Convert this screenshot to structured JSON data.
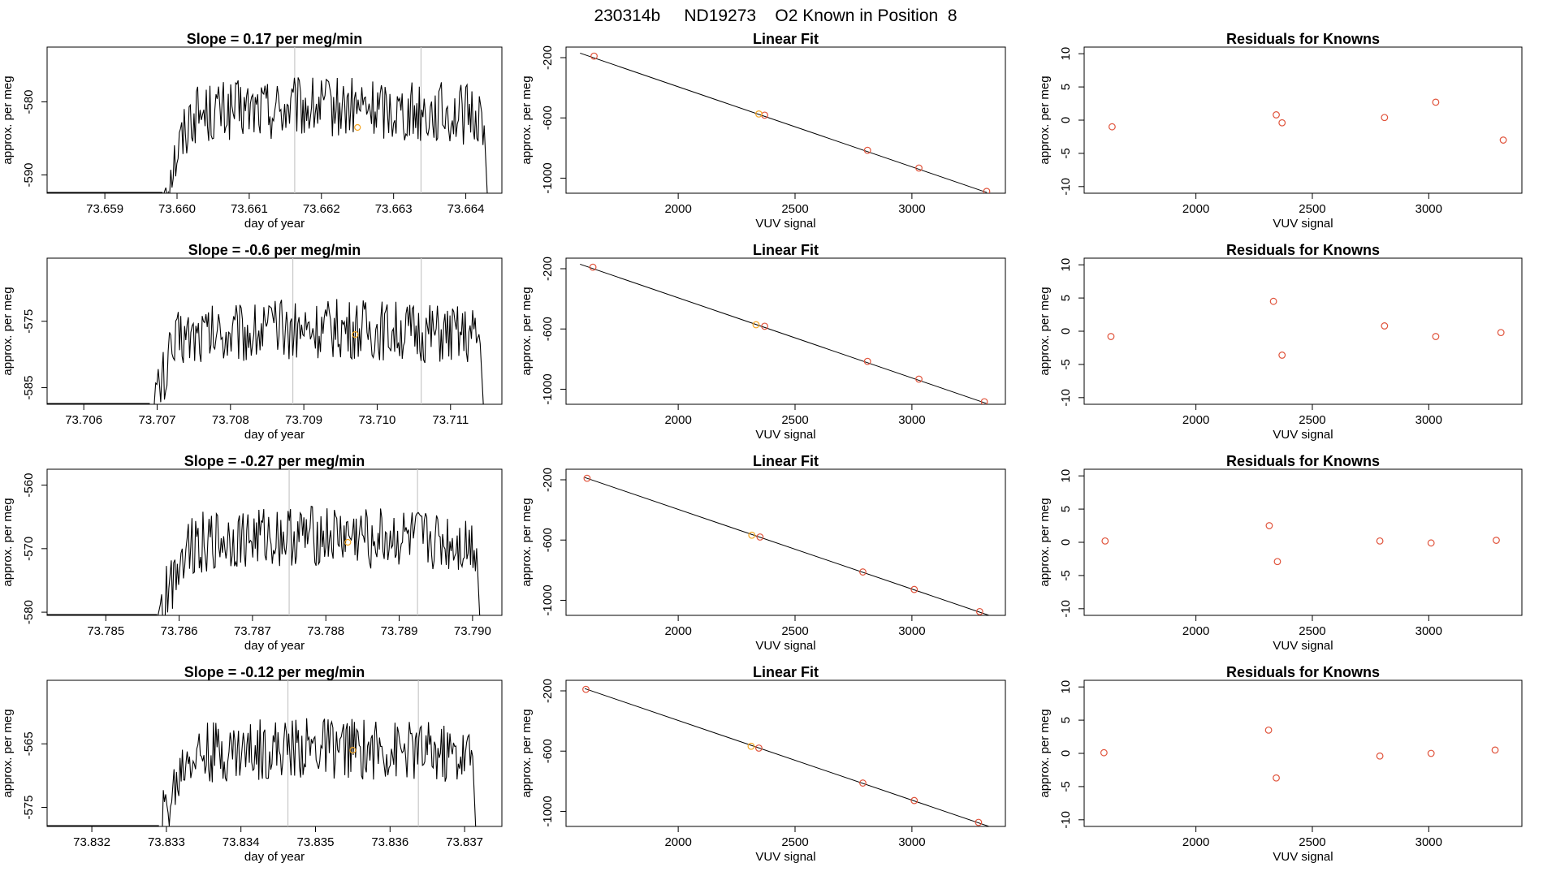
{
  "figure": {
    "main_title": "230314b     ND19273    O2 Known in Position  8"
  },
  "colors": {
    "line": "#000000",
    "marker_standard": "#e0533b",
    "marker_known": "#f5a623",
    "divider": "#c8c8c8"
  },
  "chart_data": [
    {
      "type": "line",
      "panel": "time-1",
      "title": "Slope =  0.17  per meg/min",
      "xlabel": "day of year",
      "ylabel": "approx. per meg",
      "xlim": [
        73.6582,
        73.6645
      ],
      "ylim": [
        -592.5,
        -572.5
      ],
      "xticks": [
        "73.659",
        "73.660",
        "73.661",
        "73.662",
        "73.663",
        "73.664"
      ],
      "yticks": [
        -590,
        -580
      ],
      "x_start": 73.6598,
      "x_end": 73.6643,
      "level": -582.0,
      "dividers": [
        73.66163,
        73.66338
      ],
      "known_point": [
        73.6625,
        -583.5
      ]
    },
    {
      "type": "scatter",
      "panel": "fit-1",
      "title": "Linear Fit",
      "xlabel": "VUV signal",
      "ylabel": "approx. per meg",
      "xlim": [
        1520,
        3400
      ],
      "ylim": [
        -1100,
        -130
      ],
      "xticks": [
        2000,
        2500,
        3000
      ],
      "yticks": [
        -200,
        -600,
        -1000
      ],
      "line": [
        [
          1580,
          -170
        ],
        [
          3320,
          -1095
        ]
      ],
      "standards": [
        [
          1640,
          -190
        ],
        [
          2370,
          -582
        ],
        [
          2810,
          -815
        ],
        [
          3030,
          -933
        ],
        [
          3320,
          -1088
        ]
      ],
      "known": [
        [
          2345,
          -574
        ]
      ]
    },
    {
      "type": "scatter",
      "panel": "resid-1",
      "title": "Residuals for Knowns",
      "xlabel": "VUV signal",
      "ylabel": "approx. per meg",
      "xlim": [
        1520,
        3400
      ],
      "ylim": [
        -11,
        11
      ],
      "xticks": [
        2000,
        2500,
        3000
      ],
      "yticks": [
        -10,
        -5,
        0,
        5,
        10
      ],
      "points": [
        [
          1640,
          -1.0
        ],
        [
          2345,
          0.8
        ],
        [
          2370,
          -0.4
        ],
        [
          2810,
          0.4
        ],
        [
          3030,
          2.7
        ],
        [
          3320,
          -3.0
        ]
      ]
    },
    {
      "type": "line",
      "panel": "time-2",
      "title": "Slope =  -0.6  per meg/min",
      "xlabel": "day of year",
      "ylabel": "approx. per meg",
      "xlim": [
        73.7055,
        73.7117
      ],
      "ylim": [
        -587.5,
        -565.5
      ],
      "xticks": [
        "73.706",
        "73.707",
        "73.708",
        "73.709",
        "73.710",
        "73.711"
      ],
      "yticks": [
        -585,
        -575
      ],
      "x_start": 73.7069,
      "x_end": 73.71145,
      "level": -577.5,
      "dividers": [
        73.70885,
        73.7106
      ],
      "known_point": [
        73.7097,
        -577.0
      ]
    },
    {
      "type": "scatter",
      "panel": "fit-2",
      "title": "Linear Fit",
      "xlabel": "VUV signal",
      "ylabel": "approx. per meg",
      "xlim": [
        1520,
        3400
      ],
      "ylim": [
        -1100,
        -130
      ],
      "xticks": [
        2000,
        2500,
        3000
      ],
      "yticks": [
        -200,
        -600,
        -1000
      ],
      "line": [
        [
          1580,
          -170
        ],
        [
          3320,
          -1095
        ]
      ],
      "standards": [
        [
          1635,
          -190
        ],
        [
          2370,
          -582
        ],
        [
          2810,
          -815
        ],
        [
          3030,
          -933
        ],
        [
          3310,
          -1083
        ]
      ],
      "known": [
        [
          2333,
          -572
        ]
      ]
    },
    {
      "type": "scatter",
      "panel": "resid-2",
      "title": "Residuals for Knowns",
      "xlabel": "VUV signal",
      "ylabel": "approx. per meg",
      "xlim": [
        1520,
        3400
      ],
      "ylim": [
        -11,
        11
      ],
      "xticks": [
        2000,
        2500,
        3000
      ],
      "yticks": [
        -10,
        -5,
        0,
        5,
        10
      ],
      "points": [
        [
          1635,
          -0.8
        ],
        [
          2333,
          4.5
        ],
        [
          2370,
          -3.6
        ],
        [
          2810,
          0.8
        ],
        [
          3030,
          -0.8
        ],
        [
          3310,
          -0.2
        ]
      ]
    },
    {
      "type": "line",
      "panel": "time-3",
      "title": "Slope =  -0.27  per meg/min",
      "xlabel": "day of year",
      "ylabel": "approx. per meg",
      "xlim": [
        73.7842,
        73.7904
      ],
      "ylim": [
        -580.5,
        -557.5
      ],
      "xticks": [
        "73.785",
        "73.786",
        "73.787",
        "73.788",
        "73.789",
        "73.790"
      ],
      "yticks": [
        -580,
        -570,
        -560
      ],
      "x_start": 73.7857,
      "x_end": 73.7901,
      "level": -569.5,
      "dividers": [
        73.7875,
        73.78925
      ],
      "known_point": [
        73.7883,
        -569.0
      ]
    },
    {
      "type": "scatter",
      "panel": "fit-3",
      "title": "Linear Fit",
      "xlabel": "VUV signal",
      "ylabel": "approx. per meg",
      "xlim": [
        1520,
        3400
      ],
      "ylim": [
        -1100,
        -130
      ],
      "xticks": [
        2000,
        2500,
        3000
      ],
      "yticks": [
        -200,
        -600,
        -1000
      ],
      "line": [
        [
          1600,
          -185
        ],
        [
          3330,
          -1100
        ]
      ],
      "standards": [
        [
          1610,
          -190
        ],
        [
          2350,
          -580
        ],
        [
          2790,
          -812
        ],
        [
          3010,
          -928
        ],
        [
          3290,
          -1075
        ]
      ],
      "known": [
        [
          2315,
          -568
        ]
      ]
    },
    {
      "type": "scatter",
      "panel": "resid-3",
      "title": "Residuals for Knowns",
      "xlabel": "VUV signal",
      "ylabel": "approx. per meg",
      "xlim": [
        1520,
        3400
      ],
      "ylim": [
        -11,
        11
      ],
      "xticks": [
        2000,
        2500,
        3000
      ],
      "yticks": [
        -10,
        -5,
        0,
        5,
        10
      ],
      "points": [
        [
          1610,
          0.2
        ],
        [
          2315,
          2.5
        ],
        [
          2350,
          -2.9
        ],
        [
          2790,
          0.2
        ],
        [
          3010,
          -0.1
        ],
        [
          3290,
          0.3
        ]
      ]
    },
    {
      "type": "line",
      "panel": "time-4",
      "title": "Slope =  -0.12  per meg/min",
      "xlabel": "day of year",
      "ylabel": "approx. per meg",
      "xlim": [
        73.8314,
        73.8375
      ],
      "ylim": [
        -578.0,
        -555.0
      ],
      "xticks": [
        "73.832",
        "73.833",
        "73.834",
        "73.835",
        "73.836",
        "73.837"
      ],
      "yticks": [
        -575,
        -565
      ],
      "x_start": 73.8329,
      "x_end": 73.83715,
      "level": -567.0,
      "dividers": [
        73.83463,
        73.83638
      ],
      "known_point": [
        73.8355,
        -566.0
      ]
    },
    {
      "type": "scatter",
      "panel": "fit-4",
      "title": "Linear Fit",
      "xlabel": "VUV signal",
      "ylabel": "approx. per meg",
      "xlim": [
        1520,
        3400
      ],
      "ylim": [
        -1100,
        -130
      ],
      "xticks": [
        2000,
        2500,
        3000
      ],
      "yticks": [
        -200,
        -600,
        -1000
      ],
      "line": [
        [
          1600,
          -185
        ],
        [
          3330,
          -1100
        ]
      ],
      "standards": [
        [
          1605,
          -190
        ],
        [
          2345,
          -580
        ],
        [
          2790,
          -812
        ],
        [
          3010,
          -928
        ],
        [
          3285,
          -1073
        ]
      ],
      "known": [
        [
          2312,
          -568
        ]
      ]
    },
    {
      "type": "scatter",
      "panel": "resid-4",
      "title": "Residuals for Knowns",
      "xlabel": "VUV signal",
      "ylabel": "approx. per meg",
      "xlim": [
        1520,
        3400
      ],
      "ylim": [
        -11,
        11
      ],
      "xticks": [
        2000,
        2500,
        3000
      ],
      "yticks": [
        -10,
        -5,
        0,
        5,
        10
      ],
      "points": [
        [
          1605,
          0.1
        ],
        [
          2312,
          3.5
        ],
        [
          2345,
          -3.7
        ],
        [
          2790,
          -0.4
        ],
        [
          3010,
          0.0
        ],
        [
          3285,
          0.5
        ]
      ]
    }
  ]
}
